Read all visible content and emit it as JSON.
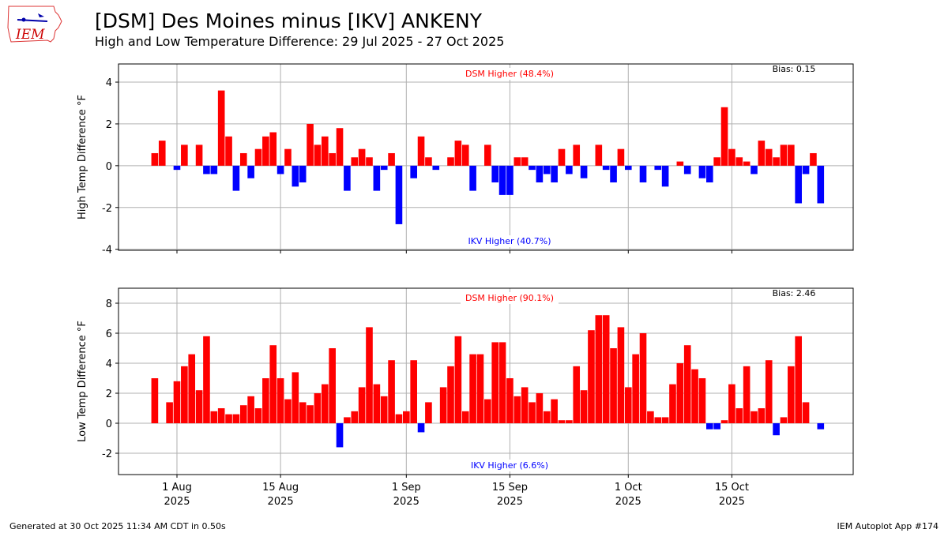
{
  "header": {
    "title": "[DSM] Des Moines minus [IKV] ANKENY",
    "subtitle": "High and Low Temperature Difference: 29 Jul 2025 - 27 Oct 2025",
    "logo_text": "IEM"
  },
  "footer": {
    "left": "Generated at 30 Oct 2025 11:34 AM CDT in 0.50s",
    "right": "IEM Autoplot App #174"
  },
  "colors": {
    "positive": "#ff0000",
    "negative": "#0000ff",
    "grid": "#b0b0b0"
  },
  "chart_data": [
    {
      "type": "bar",
      "title": "High Temp",
      "ylabel": "High Temp Difference  °F",
      "ylim": [
        -4.05,
        4.87
      ],
      "yticks": [
        -4,
        -2,
        0,
        2,
        4
      ],
      "grid": true,
      "start_date": "2025-07-29",
      "xticks": [
        {
          "day": 3,
          "label": "1 Aug",
          "year": "2025"
        },
        {
          "day": 17,
          "label": "15 Aug",
          "year": "2025"
        },
        {
          "day": 34,
          "label": "1 Sep",
          "year": "2025"
        },
        {
          "day": 48,
          "label": "15 Sep",
          "year": "2025"
        },
        {
          "day": 64,
          "label": "1 Oct",
          "year": "2025"
        },
        {
          "day": 78,
          "label": "15 Oct",
          "year": "2025"
        }
      ],
      "pos_label": "DSM Higher (48.4%)",
      "neg_label": "IKV Higher (40.7%)",
      "bias_label": "Bias: 0.15",
      "values": [
        0.6,
        1.2,
        0,
        -0.2,
        1.0,
        0,
        1.0,
        -0.4,
        -0.4,
        3.6,
        1.4,
        -1.2,
        0.6,
        -0.6,
        0.8,
        1.4,
        1.6,
        -0.4,
        0.8,
        -1.0,
        -0.8,
        2.0,
        1.0,
        1.4,
        0.6,
        1.8,
        -1.2,
        0.4,
        0.8,
        0.4,
        -1.2,
        -0.2,
        0.6,
        -2.8,
        0,
        -0.6,
        1.4,
        0.4,
        -0.2,
        0,
        0.4,
        1.2,
        1.0,
        -1.2,
        0,
        1.0,
        -0.8,
        -1.4,
        -1.4,
        0.4,
        0.4,
        -0.2,
        -0.8,
        -0.4,
        -0.8,
        0.8,
        -0.4,
        1.0,
        -0.6,
        0,
        1.0,
        -0.2,
        -0.8,
        0.8,
        -0.2,
        0,
        -0.8,
        0,
        -0.2,
        -1.0,
        0,
        0.2,
        -0.4,
        0,
        -0.6,
        -0.8,
        0.4,
        2.8,
        0.8,
        0.4,
        0.2,
        -0.4,
        1.2,
        0.8,
        0.4,
        1.0,
        1.0,
        -1.8,
        -0.4,
        0.6,
        -1.8
      ]
    },
    {
      "type": "bar",
      "title": "Low Temp",
      "ylabel": "Low Temp Difference  °F",
      "ylim": [
        -3.42,
        9.0
      ],
      "yticks": [
        -2,
        0,
        2,
        4,
        6,
        8
      ],
      "grid": true,
      "start_date": "2025-07-29",
      "xticks": [
        {
          "day": 3,
          "label": "1 Aug",
          "year": "2025"
        },
        {
          "day": 17,
          "label": "15 Aug",
          "year": "2025"
        },
        {
          "day": 34,
          "label": "1 Sep",
          "year": "2025"
        },
        {
          "day": 48,
          "label": "15 Sep",
          "year": "2025"
        },
        {
          "day": 64,
          "label": "1 Oct",
          "year": "2025"
        },
        {
          "day": 78,
          "label": "15 Oct",
          "year": "2025"
        }
      ],
      "pos_label": "DSM Higher (90.1%)",
      "neg_label": "IKV Higher (6.6%)",
      "bias_label": "Bias: 2.46",
      "values": [
        3.0,
        0,
        1.4,
        2.8,
        3.8,
        4.6,
        2.2,
        5.8,
        0.8,
        1.0,
        0.6,
        0.6,
        1.2,
        1.8,
        1.0,
        3.0,
        5.2,
        3.0,
        1.6,
        3.4,
        1.4,
        1.2,
        2.0,
        2.6,
        5.0,
        -1.6,
        0.4,
        0.8,
        2.4,
        6.4,
        2.6,
        1.8,
        4.2,
        0.6,
        0.8,
        4.2,
        -0.6,
        1.4,
        0,
        2.4,
        3.8,
        5.8,
        0.8,
        4.6,
        4.6,
        1.6,
        5.4,
        5.4,
        3.0,
        1.8,
        2.4,
        1.4,
        2.0,
        0.8,
        1.6,
        0.2,
        0.2,
        3.8,
        2.2,
        6.2,
        7.2,
        7.2,
        5.0,
        6.4,
        2.4,
        4.6,
        6.0,
        0.8,
        0.4,
        0.4,
        2.6,
        4.0,
        5.2,
        3.6,
        3.0,
        -0.4,
        -0.4,
        0.2,
        2.6,
        1.0,
        3.8,
        0.8,
        1.0,
        4.2,
        -0.8,
        0.4,
        3.8,
        5.8,
        1.4,
        0,
        -0.4
      ]
    }
  ]
}
